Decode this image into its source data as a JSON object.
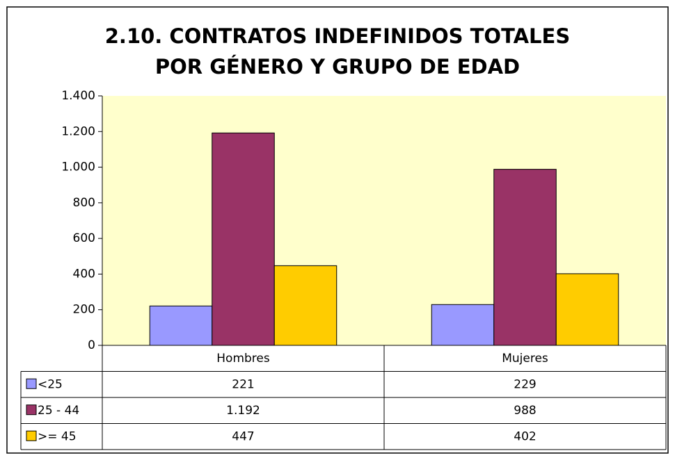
{
  "chart_data": {
    "type": "bar",
    "title": [
      "2.10. CONTRATOS INDEFINIDOS TOTALES",
      "POR GÉNERO Y GRUPO DE EDAD"
    ],
    "categories": [
      "Hombres",
      "Mujeres"
    ],
    "series": [
      {
        "name": "<25",
        "color": "#9999ff",
        "values": [
          221,
          229
        ]
      },
      {
        "name": "25 - 44",
        "color": "#993366",
        "values": [
          1192,
          988
        ],
        "value_labels": [
          "1.192",
          "988"
        ]
      },
      {
        "name": ">= 45",
        "color": "#ffcc00",
        "values": [
          447,
          402
        ]
      }
    ],
    "ylim": [
      0,
      1400
    ],
    "yticks": [
      0,
      200,
      400,
      600,
      800,
      {
        "value": 1000,
        "label": "1.000"
      },
      {
        "value": 1200,
        "label": "1.200"
      },
      {
        "value": 1400,
        "label": "1.400"
      }
    ],
    "grid": false,
    "plot_background": "#ffffcc"
  }
}
